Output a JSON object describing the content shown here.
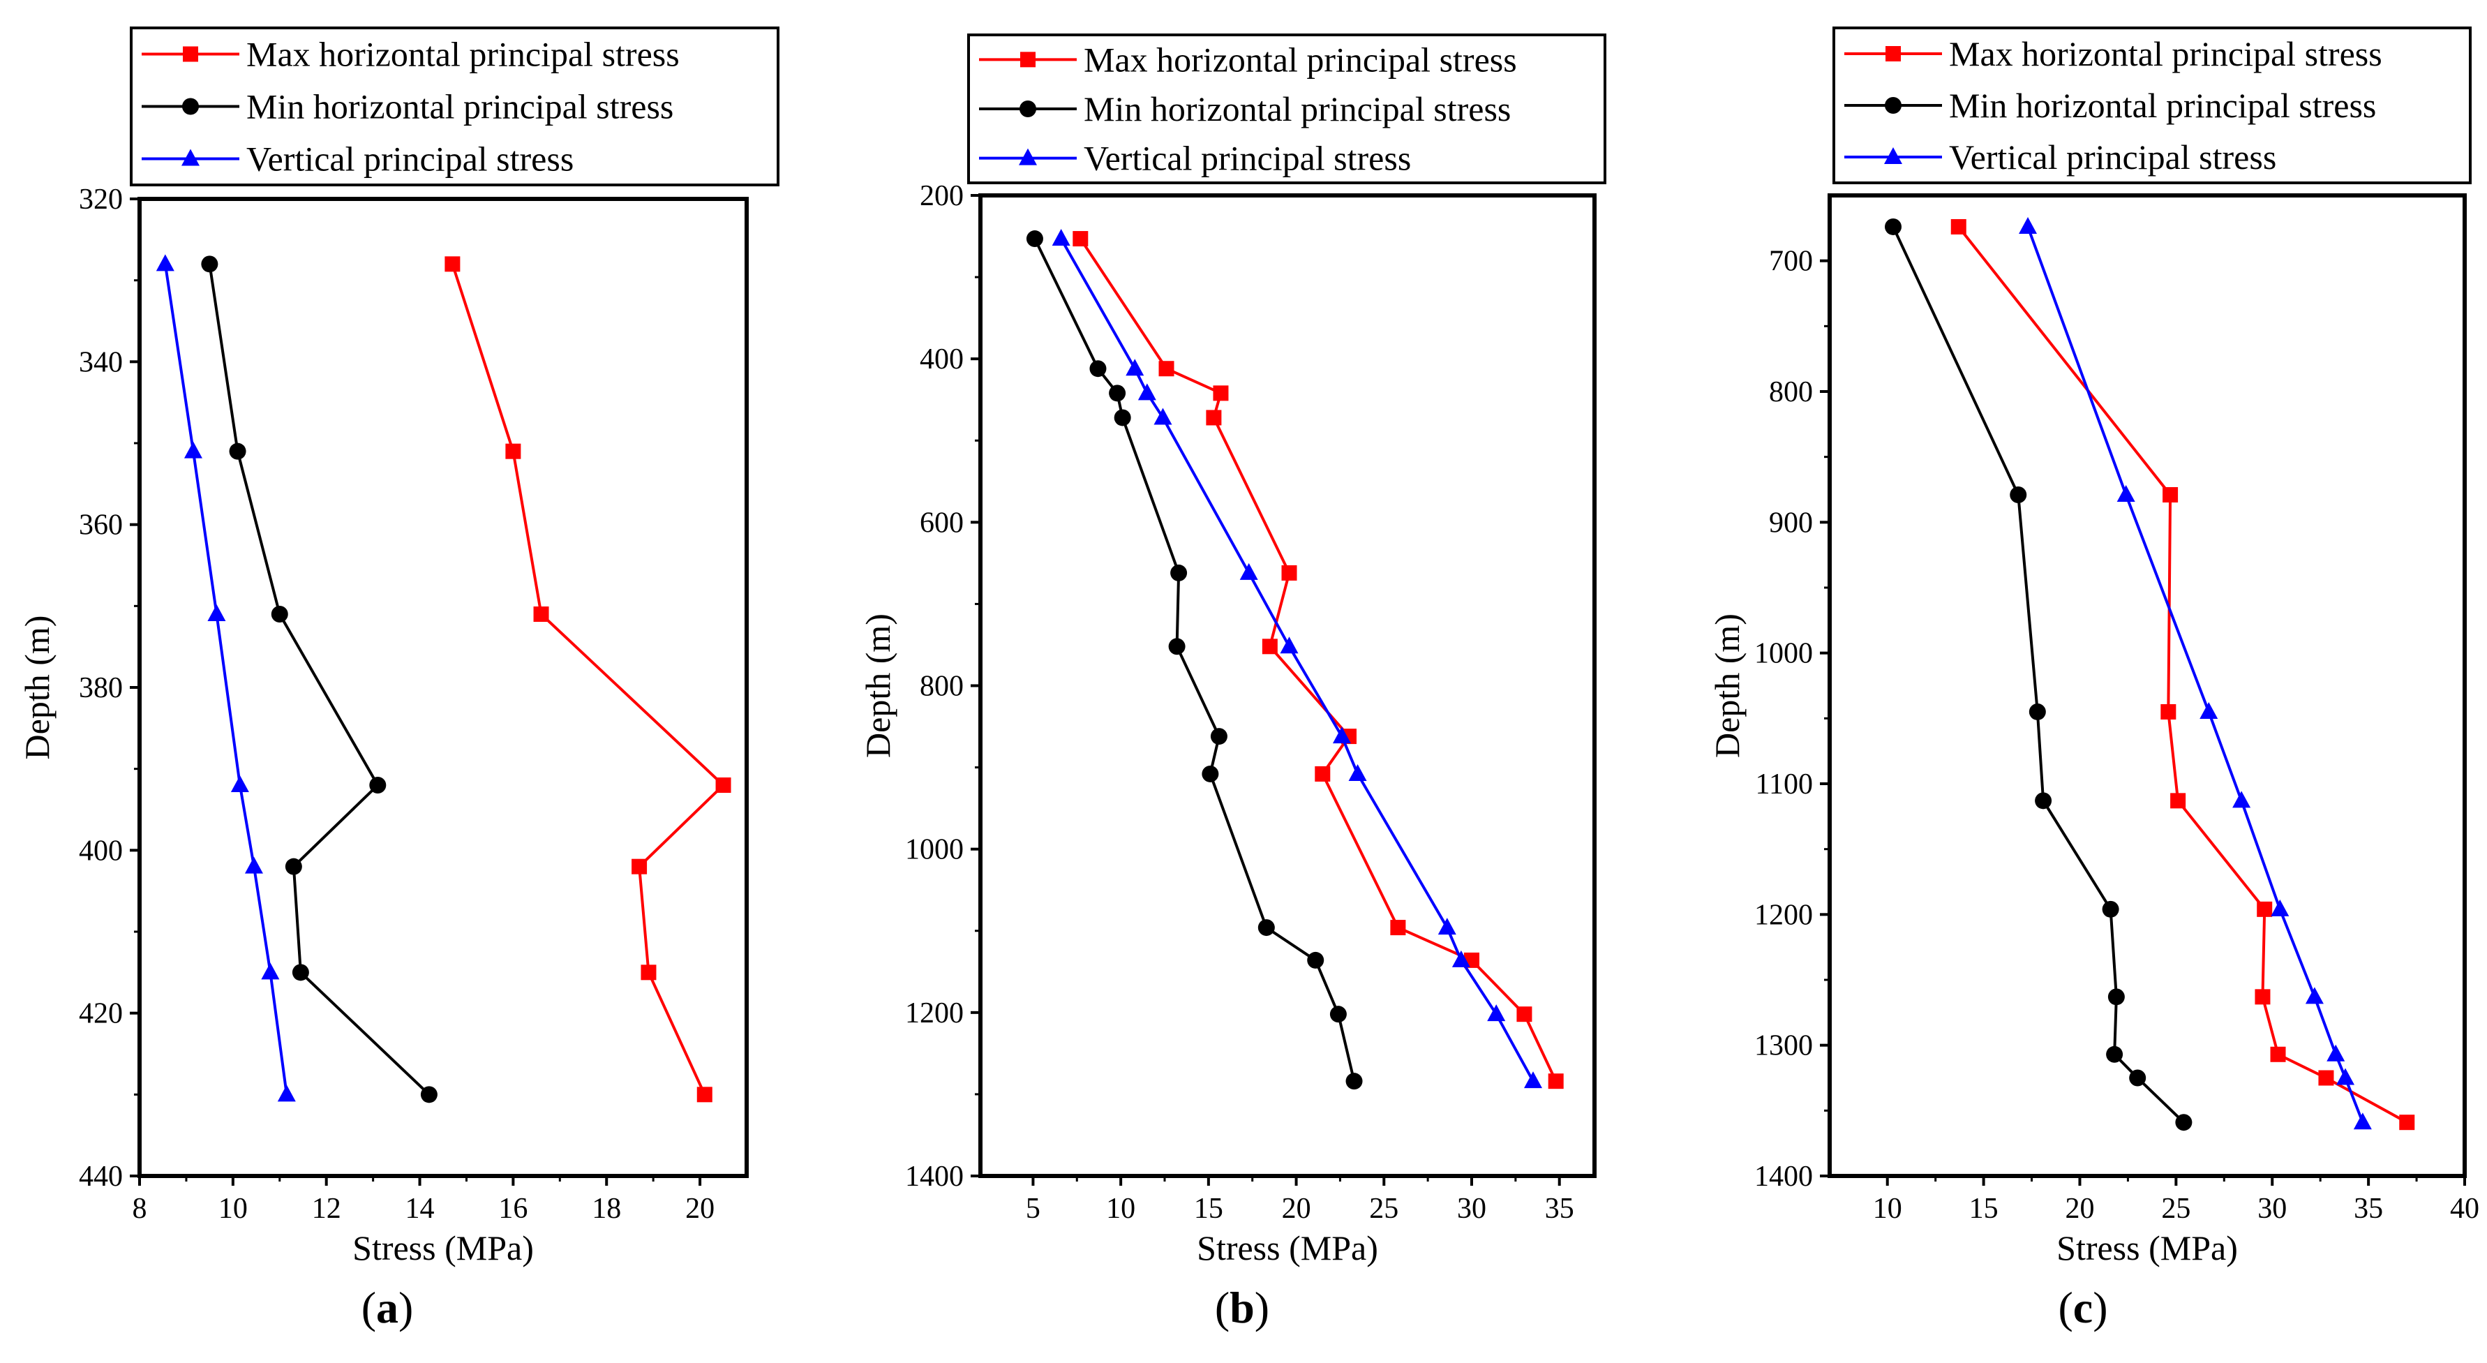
{
  "legend_labels": [
    "Max horizontal principal stress",
    "Min horizontal principal stress",
    "Vertical principal stress"
  ],
  "colors": {
    "max": "#ff0000",
    "min": "#000000",
    "vert": "#0000ff"
  },
  "chart_data": [
    {
      "type": "line",
      "panel_label": "(a)",
      "xlabel": "Stress (MPa)",
      "ylabel": "Depth (m)",
      "xlim": [
        8,
        21
      ],
      "ylim": [
        320,
        440
      ],
      "y_inverted": true,
      "xticks": [
        8,
        10,
        12,
        14,
        16,
        18,
        20
      ],
      "yticks": [
        320,
        340,
        360,
        380,
        400,
        420,
        440
      ],
      "legend": "top",
      "series": [
        {
          "name": "Max horizontal principal stress",
          "marker": "square",
          "color": "#ff0000",
          "points": [
            [
              14.7,
              328
            ],
            [
              16.0,
              351
            ],
            [
              16.6,
              371
            ],
            [
              20.5,
              392
            ],
            [
              18.7,
              402
            ],
            [
              18.9,
              415
            ],
            [
              20.1,
              430
            ]
          ]
        },
        {
          "name": "Min horizontal principal stress",
          "marker": "circle",
          "color": "#000000",
          "points": [
            [
              9.5,
              328
            ],
            [
              10.1,
              351
            ],
            [
              11.0,
              371
            ],
            [
              13.1,
              392
            ],
            [
              11.3,
              402
            ],
            [
              11.45,
              415
            ],
            [
              14.2,
              430
            ]
          ]
        },
        {
          "name": "Vertical principal stress",
          "marker": "triangle",
          "color": "#0000ff",
          "points": [
            [
              8.55,
              328
            ],
            [
              9.15,
              351
            ],
            [
              9.65,
              371
            ],
            [
              10.15,
              392
            ],
            [
              10.45,
              402
            ],
            [
              10.8,
              415
            ],
            [
              11.15,
              430
            ]
          ]
        }
      ]
    },
    {
      "type": "line",
      "panel_label": "(b)",
      "xlabel": "Stress (MPa)",
      "ylabel": "Depth (m)",
      "xlim": [
        2,
        37
      ],
      "ylim": [
        200,
        1400
      ],
      "y_inverted": true,
      "xticks": [
        5,
        10,
        15,
        20,
        25,
        30,
        35
      ],
      "yticks": [
        200,
        400,
        600,
        800,
        1000,
        1200,
        1400
      ],
      "legend": "top",
      "series": [
        {
          "name": "Max horizontal principal stress",
          "marker": "square",
          "color": "#ff0000",
          "points": [
            [
              7.7,
              253
            ],
            [
              12.6,
              412
            ],
            [
              15.7,
              442
            ],
            [
              15.3,
              472
            ],
            [
              19.6,
              662
            ],
            [
              18.5,
              752
            ],
            [
              23.0,
              862
            ],
            [
              21.5,
              908
            ],
            [
              25.8,
              1096
            ],
            [
              30.0,
              1136
            ],
            [
              33.0,
              1202
            ],
            [
              34.8,
              1284
            ]
          ]
        },
        {
          "name": "Min horizontal principal stress",
          "marker": "circle",
          "color": "#000000",
          "points": [
            [
              5.1,
              253
            ],
            [
              8.7,
              412
            ],
            [
              9.8,
              442
            ],
            [
              10.1,
              472
            ],
            [
              13.3,
              662
            ],
            [
              13.2,
              752
            ],
            [
              15.6,
              862
            ],
            [
              15.1,
              908
            ],
            [
              18.3,
              1096
            ],
            [
              21.1,
              1136
            ],
            [
              22.4,
              1202
            ],
            [
              23.3,
              1284
            ]
          ]
        },
        {
          "name": "Vertical principal stress",
          "marker": "triangle",
          "color": "#0000ff",
          "points": [
            [
              6.6,
              253
            ],
            [
              10.8,
              412
            ],
            [
              11.5,
              442
            ],
            [
              12.4,
              472
            ],
            [
              17.3,
              662
            ],
            [
              19.6,
              752
            ],
            [
              22.6,
              862
            ],
            [
              23.5,
              908
            ],
            [
              28.6,
              1096
            ],
            [
              29.4,
              1136
            ],
            [
              31.4,
              1202
            ],
            [
              33.5,
              1284
            ]
          ]
        }
      ]
    },
    {
      "type": "line",
      "panel_label": "(c)",
      "xlabel": "Stress (MPa)",
      "ylabel": "Depth (m)",
      "xlim": [
        7,
        40
      ],
      "ylim": [
        650,
        1400
      ],
      "y_inverted": true,
      "xticks": [
        10,
        15,
        20,
        25,
        30,
        35,
        40
      ],
      "yticks": [
        700,
        800,
        900,
        1000,
        1100,
        1200,
        1300,
        1400
      ],
      "legend": "top",
      "series": [
        {
          "name": "Max horizontal principal stress",
          "marker": "square",
          "color": "#ff0000",
          "points": [
            [
              13.7,
              674
            ],
            [
              24.7,
              879
            ],
            [
              24.6,
              1045
            ],
            [
              25.1,
              1113
            ],
            [
              29.6,
              1196
            ],
            [
              29.5,
              1263
            ],
            [
              30.3,
              1307
            ],
            [
              32.8,
              1325
            ],
            [
              37.0,
              1359
            ]
          ]
        },
        {
          "name": "Min horizontal principal stress",
          "marker": "circle",
          "color": "#000000",
          "points": [
            [
              10.3,
              674
            ],
            [
              16.8,
              879
            ],
            [
              17.8,
              1045
            ],
            [
              18.1,
              1113
            ],
            [
              21.6,
              1196
            ],
            [
              21.9,
              1263
            ],
            [
              21.8,
              1307
            ],
            [
              23.0,
              1325
            ],
            [
              25.4,
              1359
            ]
          ]
        },
        {
          "name": "Vertical principal stress",
          "marker": "triangle",
          "color": "#0000ff",
          "points": [
            [
              17.3,
              674
            ],
            [
              22.4,
              879
            ],
            [
              26.7,
              1045
            ],
            [
              28.4,
              1113
            ],
            [
              30.4,
              1196
            ],
            [
              32.2,
              1263
            ],
            [
              33.3,
              1307
            ],
            [
              33.8,
              1325
            ],
            [
              34.7,
              1359
            ]
          ]
        }
      ]
    }
  ]
}
